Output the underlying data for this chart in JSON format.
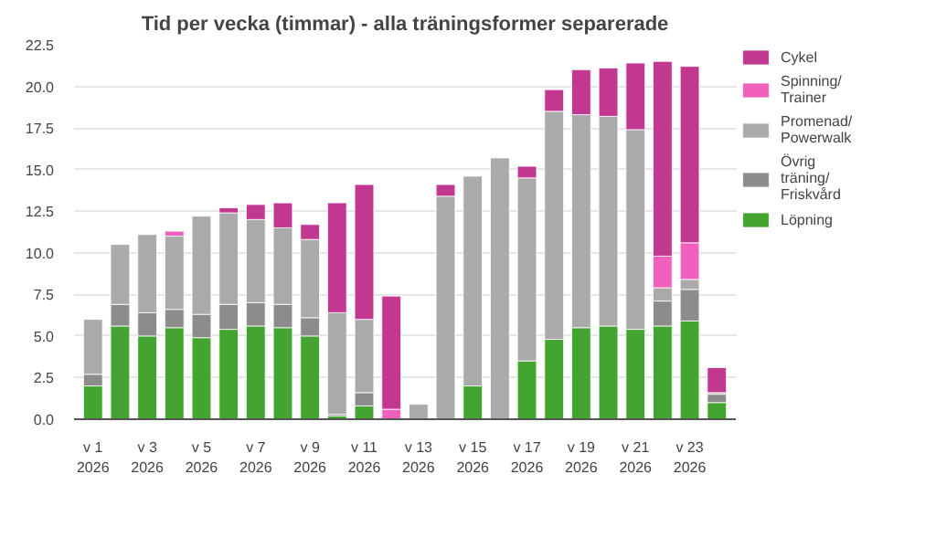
{
  "chart_data": {
    "type": "bar",
    "stacked": true,
    "title": "Tid per vecka (timmar) - alla träningsformer separerade",
    "categories": [
      "v 1\n2026",
      null,
      "v 3\n2026",
      null,
      "v 5\n2026",
      null,
      "v 7\n2026",
      null,
      "v 9\n2026",
      null,
      "v 11\n2026",
      null,
      "v 13\n2026",
      null,
      "v 15\n2026",
      null,
      "v 17\n2026",
      null,
      "v 19\n2026",
      null,
      "v 21\n2026",
      null,
      "v 23\n2026",
      null
    ],
    "series": [
      {
        "name": "Löpning",
        "color": "#43a52f",
        "values": [
          2.0,
          5.6,
          5.0,
          5.5,
          4.9,
          5.4,
          5.6,
          5.5,
          5.0,
          0.2,
          0.8,
          null,
          null,
          null,
          2.0,
          null,
          3.5,
          4.8,
          5.5,
          5.6,
          5.4,
          5.6,
          5.9,
          1.0
        ]
      },
      {
        "name": "Övrig träning/Friskvård",
        "color": "#8c8c8c",
        "values": [
          0.7,
          1.3,
          1.4,
          1.1,
          1.4,
          1.5,
          1.4,
          1.4,
          1.1,
          0.1,
          0.8,
          null,
          null,
          null,
          null,
          null,
          null,
          null,
          null,
          null,
          null,
          1.5,
          1.9,
          0.5
        ]
      },
      {
        "name": "Promenad/Powerwalk",
        "color": "#aaaaaa",
        "values": [
          3.3,
          3.6,
          4.7,
          4.4,
          5.9,
          5.5,
          5.0,
          4.6,
          4.7,
          6.1,
          4.4,
          null,
          0.9,
          13.4,
          12.6,
          15.7,
          11.0,
          13.7,
          12.8,
          12.6,
          12.0,
          0.8,
          0.6,
          0.1
        ]
      },
      {
        "name": "Spinning/Trainer",
        "color": "#f160bd",
        "values": [
          null,
          null,
          null,
          0.3,
          null,
          null,
          null,
          null,
          null,
          null,
          null,
          0.6,
          null,
          null,
          null,
          null,
          null,
          null,
          null,
          null,
          null,
          1.9,
          2.2,
          null
        ]
      },
      {
        "name": "Cykel",
        "color": "#c2378f",
        "values": [
          null,
          null,
          null,
          null,
          null,
          0.3,
          0.9,
          1.5,
          0.9,
          6.6,
          8.1,
          6.8,
          null,
          0.7,
          null,
          null,
          0.7,
          1.3,
          2.7,
          2.9,
          4.0,
          11.7,
          10.6,
          1.5
        ]
      }
    ],
    "ylim": [
      0,
      22.5
    ],
    "yticks": [
      {
        "value": 0,
        "label": "0.0"
      },
      {
        "value": 2.5,
        "label": "2.5"
      },
      {
        "value": 5,
        "label": "5.0"
      },
      {
        "value": 7.5,
        "label": "7.5"
      },
      {
        "value": 10,
        "label": "10.0"
      },
      {
        "value": 12.5,
        "label": "12.5"
      },
      {
        "value": 15,
        "label": "15.0"
      },
      {
        "value": 17.5,
        "label": "17.5"
      },
      {
        "value": 20,
        "label": "20.0"
      },
      {
        "value": 22.5,
        "label": "22.5"
      }
    ],
    "grid": "y",
    "legend": "right"
  }
}
